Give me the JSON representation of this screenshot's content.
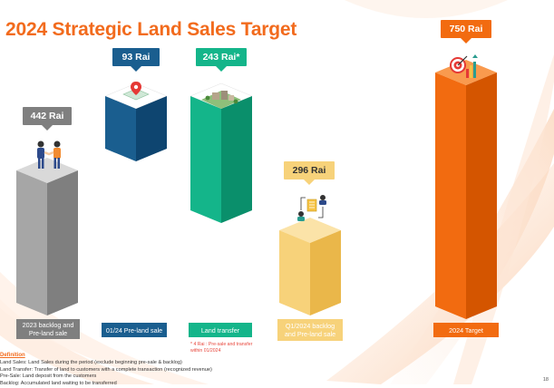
{
  "title": "2024 Strategic Land Sales Target",
  "colors": {
    "title": "#f26b1d",
    "gray": "#a6a6a6",
    "blue": "#1a5e8f",
    "green": "#0fa37d",
    "yellow": "#f2c55c",
    "orange": "#f26b10"
  },
  "columns": [
    {
      "value": "442 Rai",
      "label": "2023 backlog and\nPre-land sale",
      "icon": "handshake-icon"
    },
    {
      "value": "93 Rai",
      "label": "01/24 Pre-land sale",
      "icon": "map-pin-icon"
    },
    {
      "value": "243 Rai*",
      "label": "Land transfer",
      "icon": "land-plot-icon"
    },
    {
      "value": "296 Rai",
      "label": "Q1/2024 backlog\nand Pre-land sale",
      "icon": "document-exchange-icon"
    },
    {
      "value": "750 Rai",
      "label": "2024 Target",
      "icon": "target-chart-icon"
    }
  ],
  "note": "* 4 Rai : Pre-sale and transfer within 01/2024",
  "definitions": {
    "heading": "Definition",
    "lines": [
      "Land Sales: Land Sales during the period (exclude beginning pre-sale & backlog)",
      "Land Transfer: Transfer of land to customers with a complete transaction (recognized revenue)",
      "Pre-Sale: Land deposit from the customers",
      "Backlog: Accumulated land waiting to be transferred"
    ]
  },
  "page_number": "18"
}
